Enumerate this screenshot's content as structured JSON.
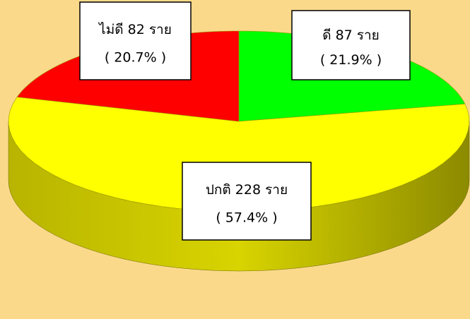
{
  "chart_data": {
    "type": "pie3d",
    "value_labels": [
      "ดี 87 ราย",
      "ปกติ 228 ราย",
      "ไม่ดี 82 ราย"
    ],
    "percent_labels": [
      "( 21.9% )",
      "( 57.4% )",
      "( 20.7% )"
    ],
    "values": [
      87,
      228,
      82
    ],
    "colors": [
      "#00ff00",
      "#ffff00",
      "#ff0000"
    ]
  }
}
